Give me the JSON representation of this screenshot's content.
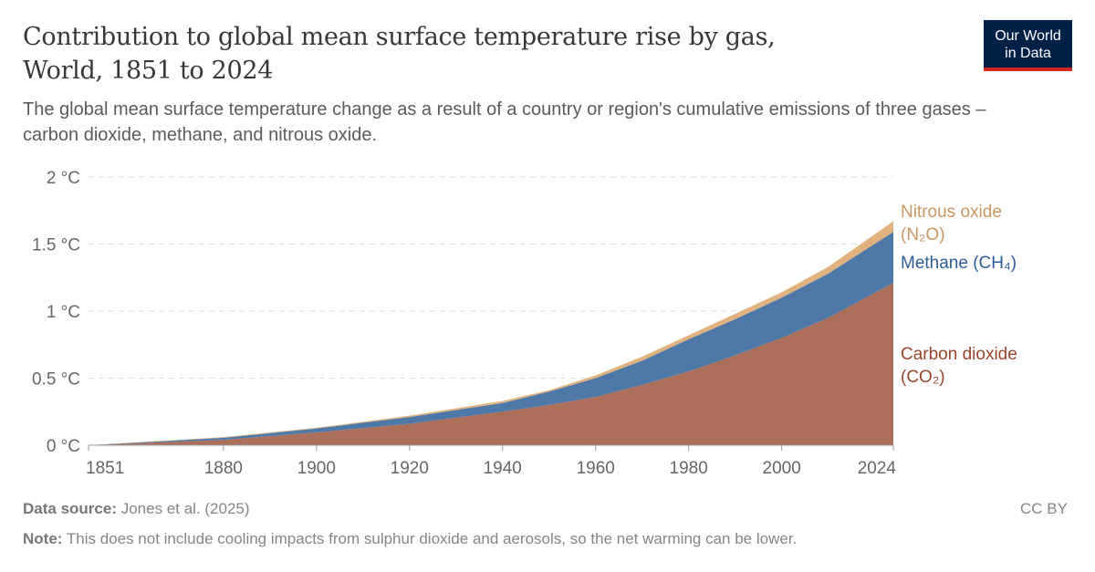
{
  "title_line1": "Contribution to global mean surface temperature rise by gas,",
  "title_line2": "World, 1851 to 2024",
  "subtitle": "The global mean surface temperature change as a result of a country or region's cumulative emissions of three gases – carbon dioxide, methane, and nitrous oxide.",
  "logo": {
    "line1": "Our World",
    "line2": "in Data",
    "bg": "#002147",
    "accent": "#ce261e"
  },
  "footer": {
    "source_label": "Data source:",
    "source_text": "Jones et al. (2025)",
    "note_label": "Note:",
    "note_text": "This does not include cooling impacts from sulphur dioxide and aerosols, so the net warming can be lower.",
    "license": "CC BY"
  },
  "chart_data": {
    "type": "area",
    "stacked": true,
    "xlim": [
      1851,
      2024
    ],
    "ylim": [
      0,
      2
    ],
    "grid": "horizontal dashed",
    "y_ticks": [
      {
        "v": 0,
        "label": "0 °C"
      },
      {
        "v": 0.5,
        "label": "0.5 °C"
      },
      {
        "v": 1,
        "label": "1 °C"
      },
      {
        "v": 1.5,
        "label": "1.5 °C"
      },
      {
        "v": 2,
        "label": "2 °C"
      }
    ],
    "x_ticks": [
      {
        "v": 1851,
        "label": "1851"
      },
      {
        "v": 1880,
        "label": "1880"
      },
      {
        "v": 1900,
        "label": "1900"
      },
      {
        "v": 1920,
        "label": "1920"
      },
      {
        "v": 1940,
        "label": "1940"
      },
      {
        "v": 1960,
        "label": "1960"
      },
      {
        "v": 1980,
        "label": "1980"
      },
      {
        "v": 2000,
        "label": "2000"
      },
      {
        "v": 2024,
        "label": "2024"
      }
    ],
    "x": [
      1851,
      1880,
      1900,
      1920,
      1940,
      1950,
      1960,
      1970,
      1980,
      1990,
      2000,
      2010,
      2024
    ],
    "series": [
      {
        "name_line1": "Carbon dioxide",
        "name_line2": "(CO₂)",
        "color": "#ab6f5a",
        "label_color": "#98442b",
        "values": [
          0,
          0.04,
          0.095,
          0.16,
          0.25,
          0.3,
          0.36,
          0.45,
          0.55,
          0.67,
          0.8,
          0.95,
          1.21
        ]
      },
      {
        "name_line1": "Methane (CH₄)",
        "name_line2": "",
        "color": "#4e78a7",
        "label_color": "#2c5d99",
        "values": [
          0,
          0.015,
          0.03,
          0.05,
          0.065,
          0.1,
          0.14,
          0.18,
          0.24,
          0.27,
          0.3,
          0.33,
          0.38
        ]
      },
      {
        "name_line1": "Nitrous oxide",
        "name_line2": "(N₂O)",
        "color": "#e1b27f",
        "label_color": "#c89563",
        "values": [
          0,
          0.005,
          0.005,
          0.01,
          0.015,
          0.01,
          0.02,
          0.03,
          0.03,
          0.04,
          0.04,
          0.05,
          0.08
        ]
      }
    ]
  }
}
